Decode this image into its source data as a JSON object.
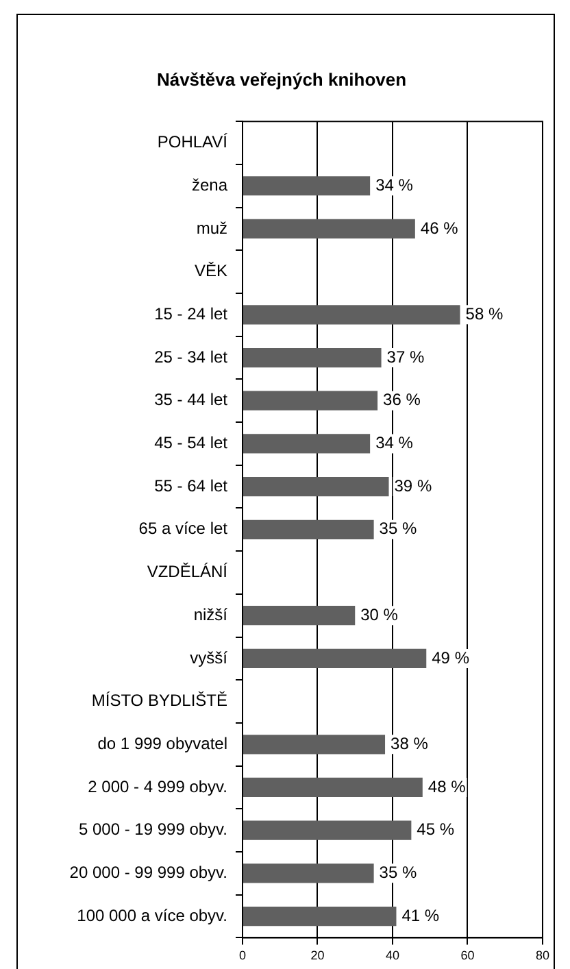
{
  "chart_data": {
    "type": "bar",
    "title": "Návštěva veřejných knihoven",
    "orientation": "horizontal",
    "categories": [
      "POHLAVÍ",
      "žena",
      "muž",
      "VĚK",
      "15 - 24 let",
      "25 - 34 let",
      "35 - 44 let",
      "45 - 54 let",
      "55 - 64 let",
      "65 a více let",
      "VZDĚLÁNÍ",
      "nižší",
      "vyšší",
      "MÍSTO BYDLIŠTĚ",
      "do 1 999 obyvatel",
      "2 000 - 4 999 obyv.",
      "5 000 - 19 999 obyv.",
      "20 000 - 99 999 obyv.",
      "100 000 a více obyv."
    ],
    "values": [
      null,
      34,
      46,
      null,
      58,
      37,
      36,
      34,
      39,
      35,
      null,
      30,
      49,
      null,
      38,
      48,
      45,
      35,
      41
    ],
    "value_labels": [
      null,
      "34 %",
      "46 %",
      null,
      "58 %",
      "37 %",
      "36 %",
      "34 %",
      "39 %",
      "35 %",
      null,
      "30 %",
      "49 %",
      null,
      "38 %",
      "48 %",
      "45 %",
      "35 %",
      "41 %"
    ],
    "color": "#606060",
    "xlim": [
      0,
      80
    ],
    "xticks": [
      0,
      20,
      40,
      60,
      80
    ],
    "grid": "x"
  }
}
